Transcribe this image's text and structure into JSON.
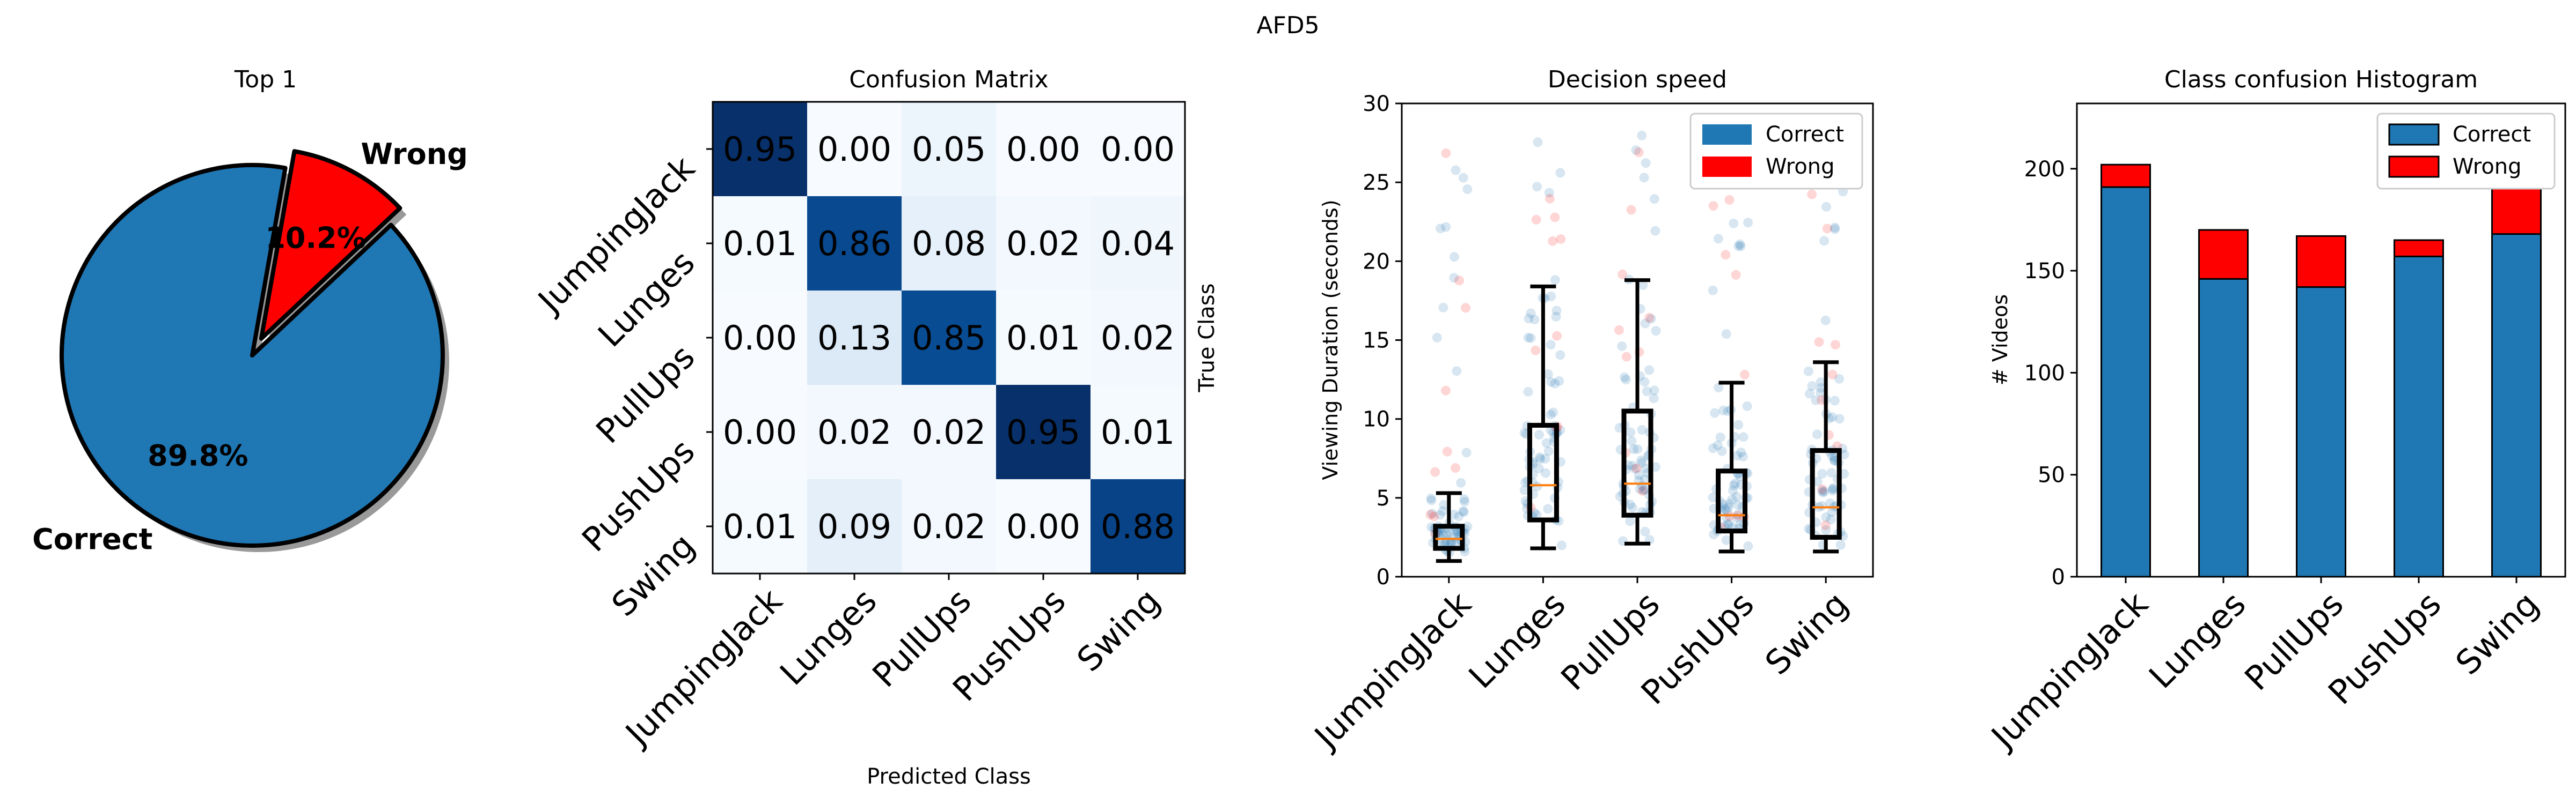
{
  "figure": {
    "suptitle": "AFD5"
  },
  "chart_data": [
    {
      "type": "pie",
      "title": "Top 1",
      "labels": [
        "Correct",
        "Wrong"
      ],
      "values": [
        89.8,
        10.2
      ],
      "autopct": [
        "89.8%",
        "10.2%"
      ],
      "colors": [
        "#1f77b4",
        "#ff0000"
      ],
      "explode": [
        "Wrong"
      ],
      "shadow": true
    },
    {
      "type": "heatmap",
      "title": "Confusion Matrix",
      "xlabel": "Predicted Class",
      "ylabel": "True Class",
      "classes": [
        "JumpingJack",
        "Lunges",
        "PullUps",
        "PushUps",
        "Swing"
      ],
      "matrix": [
        [
          0.95,
          0.0,
          0.05,
          0.0,
          0.0
        ],
        [
          0.01,
          0.86,
          0.08,
          0.02,
          0.04
        ],
        [
          0.0,
          0.13,
          0.85,
          0.01,
          0.02
        ],
        [
          0.0,
          0.02,
          0.02,
          0.95,
          0.01
        ],
        [
          0.01,
          0.09,
          0.02,
          0.0,
          0.88
        ]
      ],
      "colormap": "Blues"
    },
    {
      "type": "box",
      "title": "Decision speed",
      "ylabel": "Viewing Duration (seconds)",
      "categories": [
        "JumpingJack",
        "Lunges",
        "PullUps",
        "PushUps",
        "Swing"
      ],
      "ylim": [
        0,
        30
      ],
      "yticks": [
        0,
        5,
        10,
        15,
        20,
        25,
        30
      ],
      "box_stats": [
        {
          "whislo": 1.0,
          "q1": 1.8,
          "median": 2.4,
          "q3": 3.2,
          "whishi": 5.3
        },
        {
          "whislo": 1.8,
          "q1": 3.6,
          "median": 5.8,
          "q3": 9.6,
          "whishi": 18.4
        },
        {
          "whislo": 2.1,
          "q1": 3.9,
          "median": 5.9,
          "q3": 10.5,
          "whishi": 18.8
        },
        {
          "whislo": 1.6,
          "q1": 2.9,
          "median": 3.9,
          "q3": 6.7,
          "whishi": 12.3
        },
        {
          "whislo": 1.6,
          "q1": 2.5,
          "median": 4.4,
          "q3": 8.0,
          "whishi": 13.6
        }
      ],
      "legend": [
        "Correct",
        "Wrong"
      ],
      "legend_position": "upper-right",
      "colors": {
        "Correct": "#1f77b4",
        "Wrong": "#ff0000",
        "median": "#ff7f0e"
      }
    },
    {
      "type": "bar",
      "stacked": true,
      "title": "Class confusion Histogram",
      "ylabel": "# Videos",
      "categories": [
        "JumpingJack",
        "Lunges",
        "PullUps",
        "PushUps",
        "Swing"
      ],
      "series": [
        {
          "name": "Correct",
          "values": [
            191,
            146,
            142,
            157,
            168
          ],
          "color": "#1f77b4"
        },
        {
          "name": "Wrong",
          "values": [
            11,
            24,
            25,
            8,
            23
          ],
          "color": "#ff0000"
        }
      ],
      "ylim": [
        0,
        232
      ],
      "yticks": [
        0,
        50,
        100,
        150,
        200
      ],
      "legend_position": "upper-right"
    }
  ]
}
